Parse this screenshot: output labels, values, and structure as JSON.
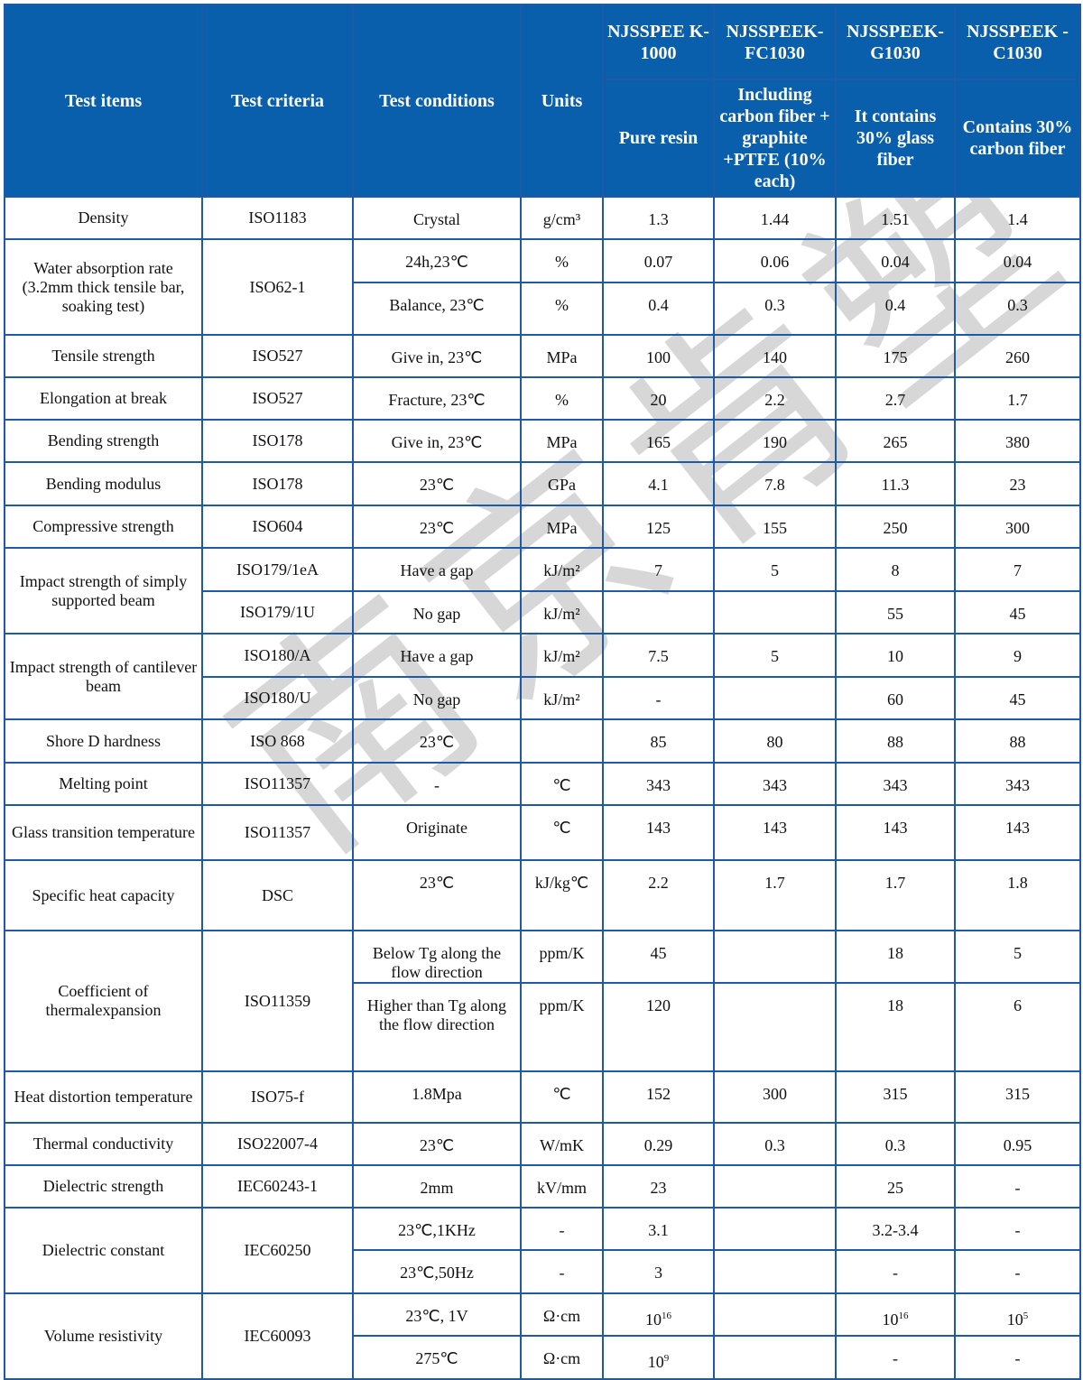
{
  "header": {
    "test_items": "Test items",
    "test_criteria": "Test criteria",
    "test_conditions": "Test conditions",
    "units": "Units",
    "products": [
      {
        "name": "NJSSPEEK-1000",
        "name_display": "NJSSPEE K-1000",
        "desc": "Pure resin"
      },
      {
        "name": "NJSSPEEK-FC1030",
        "name_display": "NJSSPEEK- FC1030",
        "desc": "Including carbon fiber + graphite +PTFE (10% each)"
      },
      {
        "name": "NJSSPEEK-G1030",
        "name_display": "NJSSPEEK- G1030",
        "desc": "It contains 30% glass fiber"
      },
      {
        "name": "NJSSPEEK-C1030",
        "name_display": "NJSSPEEK -C1030",
        "desc": "Contains 30% carbon fiber"
      }
    ]
  },
  "colors": {
    "header_bg": "#0a5fac",
    "border": "#1f5aa6"
  },
  "watermark": "南京肯塑",
  "rows": [
    {
      "item": "Density",
      "criteria": "ISO1183",
      "sub": [
        {
          "cond": "Crystal",
          "unit": "g/cm³",
          "values": [
            "1.3",
            "1.44",
            "1.51",
            "1.4"
          ]
        }
      ]
    },
    {
      "item": "Water absorption rate (3.2mm thick tensile bar, soaking test)",
      "criteria": "ISO62-1",
      "sub": [
        {
          "cond": "24h,23℃",
          "unit": "%",
          "values": [
            "0.07",
            "0.06",
            "0.04",
            "0.04"
          ]
        },
        {
          "cond": "Balance, 23℃",
          "unit": "%",
          "values": [
            "0.4",
            "0.3",
            "0.4",
            "0.3"
          ]
        }
      ]
    },
    {
      "item": "Tensile strength",
      "criteria": "ISO527",
      "sub": [
        {
          "cond": "Give in, 23℃",
          "unit": "MPa",
          "values": [
            "100",
            "140",
            "175",
            "260"
          ]
        }
      ]
    },
    {
      "item": "Elongation at break",
      "criteria": "ISO527",
      "sub": [
        {
          "cond": "Fracture, 23℃",
          "unit": "%",
          "values": [
            "20",
            "2.2",
            "2.7",
            "1.7"
          ]
        }
      ]
    },
    {
      "item": "Bending strength",
      "criteria": "ISO178",
      "sub": [
        {
          "cond": "Give in, 23℃",
          "unit": "MPa",
          "values": [
            "165",
            "190",
            "265",
            "380"
          ]
        }
      ]
    },
    {
      "item": "Bending modulus",
      "criteria": "ISO178",
      "sub": [
        {
          "cond": "23℃",
          "unit": "GPa",
          "values": [
            "4.1",
            "7.8",
            "11.3",
            "23"
          ]
        }
      ]
    },
    {
      "item": "Compressive strength",
      "criteria": "ISO604",
      "sub": [
        {
          "cond": "23℃",
          "unit": "MPa",
          "values": [
            "125",
            "155",
            "250",
            "300"
          ]
        }
      ]
    },
    {
      "item": "Impact strength of simply supported beam",
      "sub": [
        {
          "criteria": "ISO179/1eA",
          "cond": "Have a gap",
          "unit": "kJ/m²",
          "values": [
            "7",
            "5",
            "8",
            "7"
          ]
        },
        {
          "criteria": "ISO179/1U",
          "cond": "No gap",
          "unit": "kJ/m²",
          "values": [
            "",
            "",
            "55",
            "45"
          ]
        }
      ]
    },
    {
      "item": "Impact strength of cantilever beam",
      "sub": [
        {
          "criteria": "ISO180/A",
          "cond": "Have a gap",
          "unit": "kJ/m²",
          "values": [
            "7.5",
            "5",
            "10",
            "9"
          ]
        },
        {
          "criteria": "ISO180/U",
          "cond": "No gap",
          "unit": "kJ/m²",
          "values": [
            "-",
            "",
            "60",
            "45"
          ]
        }
      ]
    },
    {
      "item": "Shore D hardness",
      "criteria": "ISO 868",
      "sub": [
        {
          "cond": "23℃",
          "unit": "",
          "values": [
            "85",
            "80",
            "88",
            "88"
          ]
        }
      ]
    },
    {
      "item": "Melting point",
      "criteria": "ISO11357",
      "sub": [
        {
          "cond": "-",
          "unit": "℃",
          "values": [
            "343",
            "343",
            "343",
            "343"
          ]
        }
      ]
    },
    {
      "item": "Glass transition temperature",
      "criteria": "ISO11357",
      "sub": [
        {
          "cond": "Originate",
          "unit": "℃",
          "values": [
            "143",
            "143",
            "143",
            "143"
          ]
        }
      ]
    },
    {
      "item": "Specific heat capacity",
      "criteria": "DSC",
      "sub": [
        {
          "cond": "23℃",
          "unit": "kJ/kg℃",
          "values": [
            "2.2",
            "1.7",
            "1.7",
            "1.8"
          ]
        }
      ]
    },
    {
      "item": "Coefficient of thermalexpansion",
      "criteria": "ISO11359",
      "sub": [
        {
          "cond": "Below Tg along the flow direction",
          "unit": "ppm/K",
          "values": [
            "45",
            "",
            "18",
            "5"
          ]
        },
        {
          "cond": "Higher than Tg along the flow direction",
          "unit": "ppm/K",
          "values": [
            "120",
            "",
            "18",
            "6"
          ]
        }
      ]
    },
    {
      "item": "Heat distortion temperature",
      "criteria": "ISO75-f",
      "sub": [
        {
          "cond": "1.8Mpa",
          "unit": "℃",
          "values": [
            "152",
            "300",
            "315",
            "315"
          ]
        }
      ]
    },
    {
      "item": "Thermal conductivity",
      "criteria": "ISO22007-4",
      "sub": [
        {
          "cond": "23℃",
          "unit": "W/mK",
          "values": [
            "0.29",
            "0.3",
            "0.3",
            "0.95"
          ]
        }
      ]
    },
    {
      "item": "Dielectric strength",
      "criteria": "IEC60243-1",
      "sub": [
        {
          "cond": "2mm",
          "unit": "kV/mm",
          "values": [
            "23",
            "",
            "25",
            "-"
          ]
        }
      ]
    },
    {
      "item": "Dielectric constant",
      "criteria": "IEC60250",
      "sub": [
        {
          "cond": "23℃,1KHz",
          "unit": "-",
          "values": [
            "3.1",
            "",
            "3.2-3.4",
            "-"
          ]
        },
        {
          "cond": "23℃,50Hz",
          "unit": "-",
          "values": [
            "3",
            "",
            "-",
            "-"
          ]
        }
      ]
    },
    {
      "item": "Volume resistivity",
      "criteria": "IEC60093",
      "sub": [
        {
          "cond": "23℃, 1V",
          "unit": "Ω·cm",
          "values": [
            {
              "base": "10",
              "sup": "16"
            },
            "",
            {
              "base": "10",
              "sup": "16"
            },
            {
              "base": "10",
              "sup": "5"
            }
          ]
        },
        {
          "cond": "275℃",
          "unit": "Ω·cm",
          "values": [
            {
              "base": "10",
              "sup": "9"
            },
            "",
            "-",
            "-"
          ]
        }
      ]
    }
  ]
}
